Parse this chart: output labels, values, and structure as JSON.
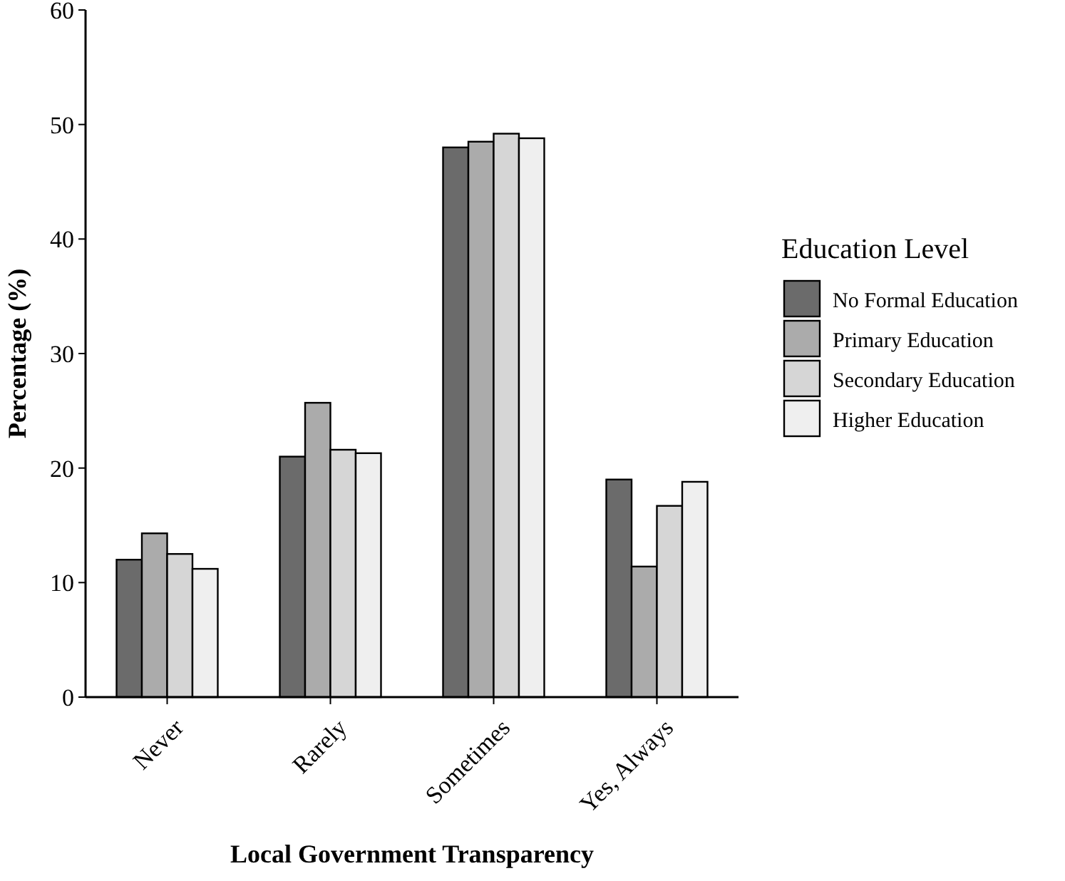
{
  "chart_data": {
    "type": "bar",
    "xlabel": "Local Government Transparency",
    "ylabel": "Percentage (%)",
    "legend_title": "Education Level",
    "categories": [
      "Never",
      "Rarely",
      "Sometimes",
      "Yes, Always"
    ],
    "series": [
      {
        "name": "No Formal Education",
        "color": "#6b6b6b",
        "values": [
          12.0,
          21.0,
          48.0,
          19.0
        ]
      },
      {
        "name": "Primary Education",
        "color": "#ababab",
        "values": [
          14.3,
          25.7,
          48.5,
          11.4
        ]
      },
      {
        "name": "Secondary Education",
        "color": "#d6d6d6",
        "values": [
          12.5,
          21.6,
          49.2,
          16.7
        ]
      },
      {
        "name": "Higher Education",
        "color": "#efefef",
        "values": [
          11.2,
          21.3,
          48.8,
          18.8
        ]
      }
    ],
    "ylim": [
      0,
      60
    ],
    "yticks": [
      0,
      10,
      20,
      30,
      40,
      50,
      60
    ],
    "grid": false,
    "legend": "right"
  }
}
